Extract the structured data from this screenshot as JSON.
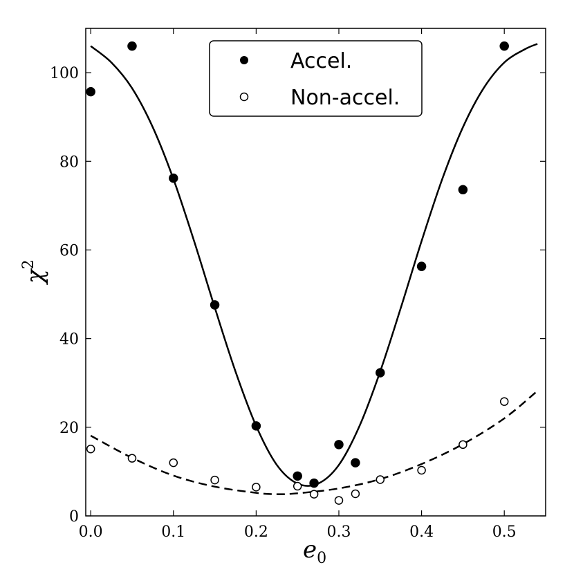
{
  "chart_data": {
    "type": "scatter",
    "xlabel": "e",
    "xlabel_sub": "0",
    "ylabel": "χ",
    "ylabel_sup": "2",
    "xlim": [
      -0.006,
      0.55
    ],
    "ylim": [
      0,
      110
    ],
    "xticks": [
      0.0,
      0.1,
      0.2,
      0.3,
      0.4,
      0.5
    ],
    "xtick_labels": [
      "0.0",
      "0.1",
      "0.2",
      "0.3",
      "0.4",
      "0.5"
    ],
    "yticks": [
      0,
      20,
      40,
      60,
      80,
      100
    ],
    "ytick_labels": [
      "0",
      "20",
      "40",
      "60",
      "80",
      "100"
    ],
    "grid": false,
    "legend_position": "top-center",
    "series": [
      {
        "name": "Accel.",
        "marker": "filled-circle",
        "color": "#000000",
        "points": [
          {
            "x": 0.0,
            "y": 95.7
          },
          {
            "x": 0.05,
            "y": 106.0
          },
          {
            "x": 0.1,
            "y": 76.2
          },
          {
            "x": 0.15,
            "y": 47.6
          },
          {
            "x": 0.2,
            "y": 20.3
          },
          {
            "x": 0.25,
            "y": 9.0
          },
          {
            "x": 0.27,
            "y": 7.4
          },
          {
            "x": 0.3,
            "y": 16.1
          },
          {
            "x": 0.32,
            "y": 12.0
          },
          {
            "x": 0.35,
            "y": 32.3
          },
          {
            "x": 0.4,
            "y": 56.3
          },
          {
            "x": 0.45,
            "y": 73.6
          },
          {
            "x": 0.5,
            "y": 106.0
          }
        ],
        "fit_style": "solid",
        "fit": [
          {
            "x": 0.0,
            "y": 106.0
          },
          {
            "x": 0.025,
            "y": 102.3
          },
          {
            "x": 0.05,
            "y": 96.5
          },
          {
            "x": 0.075,
            "y": 87.7
          },
          {
            "x": 0.1,
            "y": 76.0
          },
          {
            "x": 0.125,
            "y": 62.0
          },
          {
            "x": 0.15,
            "y": 47.0
          },
          {
            "x": 0.175,
            "y": 32.6
          },
          {
            "x": 0.2,
            "y": 20.3
          },
          {
            "x": 0.225,
            "y": 11.5
          },
          {
            "x": 0.25,
            "y": 7.3
          },
          {
            "x": 0.275,
            "y": 7.3
          },
          {
            "x": 0.3,
            "y": 11.5
          },
          {
            "x": 0.325,
            "y": 20.3
          },
          {
            "x": 0.35,
            "y": 32.6
          },
          {
            "x": 0.375,
            "y": 47.0
          },
          {
            "x": 0.4,
            "y": 62.0
          },
          {
            "x": 0.425,
            "y": 76.0
          },
          {
            "x": 0.45,
            "y": 87.7
          },
          {
            "x": 0.475,
            "y": 96.5
          },
          {
            "x": 0.5,
            "y": 102.3
          },
          {
            "x": 0.525,
            "y": 105.3
          },
          {
            "x": 0.54,
            "y": 106.5
          }
        ]
      },
      {
        "name": "Non-accel.",
        "marker": "open-circle",
        "color": "#000000",
        "points": [
          {
            "x": 0.0,
            "y": 15.1
          },
          {
            "x": 0.05,
            "y": 13.0
          },
          {
            "x": 0.1,
            "y": 12.0
          },
          {
            "x": 0.15,
            "y": 8.1
          },
          {
            "x": 0.2,
            "y": 6.5
          },
          {
            "x": 0.25,
            "y": 6.7
          },
          {
            "x": 0.27,
            "y": 4.9
          },
          {
            "x": 0.3,
            "y": 3.5
          },
          {
            "x": 0.32,
            "y": 5.0
          },
          {
            "x": 0.35,
            "y": 8.2
          },
          {
            "x": 0.4,
            "y": 10.3
          },
          {
            "x": 0.45,
            "y": 16.1
          },
          {
            "x": 0.5,
            "y": 25.8
          }
        ],
        "fit_style": "dashed",
        "fit": [
          {
            "x": 0.0,
            "y": 18.1
          },
          {
            "x": 0.05,
            "y": 13.1
          },
          {
            "x": 0.1,
            "y": 9.1
          },
          {
            "x": 0.15,
            "y": 6.6
          },
          {
            "x": 0.2,
            "y": 5.2
          },
          {
            "x": 0.225,
            "y": 4.9
          },
          {
            "x": 0.25,
            "y": 5.1
          },
          {
            "x": 0.3,
            "y": 6.2
          },
          {
            "x": 0.35,
            "y": 8.3
          },
          {
            "x": 0.4,
            "y": 11.7
          },
          {
            "x": 0.45,
            "y": 16.2
          },
          {
            "x": 0.5,
            "y": 22.0
          },
          {
            "x": 0.54,
            "y": 28.2
          }
        ]
      }
    ]
  }
}
